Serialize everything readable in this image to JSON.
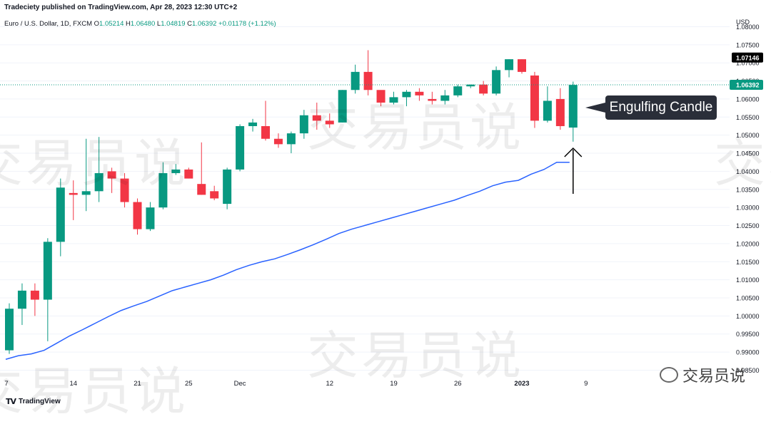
{
  "header": {
    "publisher": "Tradeciety published on TradingView.com, Apr 28, 2023 12:30 UTC+2"
  },
  "ohlc": {
    "symbol": "Euro / U.S. Dollar, 1D, FXCM",
    "o_label": "O",
    "o": "1.05214",
    "h_label": "H",
    "h": "1.06480",
    "l_label": "L",
    "l": "1.04819",
    "c_label": "C",
    "c": "1.06392",
    "change": "+0.01178 (+1.12%)"
  },
  "annotation": {
    "text": "Engulfing Candle"
  },
  "watermarks": {
    "text": "交易员说"
  },
  "branding": {
    "tradingview": "TradingView",
    "wechat": "交易员说"
  },
  "chart_data": {
    "type": "candlestick",
    "currency": "USD",
    "y_ticks": [
      "1.08000",
      "1.07500",
      "1.07000",
      "1.06500",
      "1.06000",
      "1.05500",
      "1.05000",
      "1.04500",
      "1.04000",
      "1.03500",
      "1.03000",
      "1.02500",
      "1.02000",
      "1.01500",
      "1.01000",
      "1.00500",
      "1.00000",
      "0.99500",
      "0.99000",
      "0.98500"
    ],
    "ylim": [
      0.9845,
      1.0795
    ],
    "last_price_label": "1.07146",
    "current_price_label": "1.06392",
    "current_price": 1.06392,
    "x_ticks": [
      {
        "label": "7",
        "index": 0
      },
      {
        "label": "14",
        "index": 5
      },
      {
        "label": "21",
        "index": 10
      },
      {
        "label": "25",
        "index": 14
      },
      {
        "label": "Dec",
        "index": 18
      },
      {
        "label": "12",
        "index": 25
      },
      {
        "label": "19",
        "index": 30
      },
      {
        "label": "26",
        "index": 35
      },
      {
        "label": "2023",
        "index": 40
      },
      {
        "label": "9",
        "index": 45
      }
    ],
    "candles": [
      {
        "o": 0.9905,
        "h": 1.0035,
        "l": 0.9895,
        "c": 1.002
      },
      {
        "o": 1.002,
        "h": 1.009,
        "l": 0.9975,
        "c": 1.007
      },
      {
        "o": 1.007,
        "h": 1.009,
        "l": 1.0,
        "c": 1.0045
      },
      {
        "o": 1.0045,
        "h": 1.0215,
        "l": 0.993,
        "c": 1.0205
      },
      {
        "o": 1.0205,
        "h": 1.038,
        "l": 1.0165,
        "c": 1.0355
      },
      {
        "o": 1.034,
        "h": 1.0375,
        "l": 1.0265,
        "c": 1.0335
      },
      {
        "o": 1.0335,
        "h": 1.049,
        "l": 1.029,
        "c": 1.0345
      },
      {
        "o": 1.0345,
        "h": 1.0495,
        "l": 1.0315,
        "c": 1.0395
      },
      {
        "o": 1.04,
        "h": 1.041,
        "l": 1.034,
        "c": 1.038
      },
      {
        "o": 1.038,
        "h": 1.0395,
        "l": 1.03,
        "c": 1.0315
      },
      {
        "o": 1.0315,
        "h": 1.0325,
        "l": 1.0225,
        "c": 1.024
      },
      {
        "o": 1.024,
        "h": 1.0315,
        "l": 1.0235,
        "c": 1.03
      },
      {
        "o": 1.03,
        "h": 1.0425,
        "l": 1.0295,
        "c": 1.0395
      },
      {
        "o": 1.0395,
        "h": 1.042,
        "l": 1.039,
        "c": 1.0405
      },
      {
        "o": 1.0405,
        "h": 1.041,
        "l": 1.038,
        "c": 1.038
      },
      {
        "o": 1.0365,
        "h": 1.048,
        "l": 1.0335,
        "c": 1.0335
      },
      {
        "o": 1.0345,
        "h": 1.036,
        "l": 1.032,
        "c": 1.0325
      },
      {
        "o": 1.031,
        "h": 1.041,
        "l": 1.0295,
        "c": 1.0405
      },
      {
        "o": 1.0405,
        "h": 1.053,
        "l": 1.04,
        "c": 1.0525
      },
      {
        "o": 1.0525,
        "h": 1.0545,
        "l": 1.051,
        "c": 1.0535
      },
      {
        "o": 1.0525,
        "h": 1.0595,
        "l": 1.0485,
        "c": 1.049
      },
      {
        "o": 1.049,
        "h": 1.0505,
        "l": 1.0465,
        "c": 1.0475
      },
      {
        "o": 1.0475,
        "h": 1.051,
        "l": 1.045,
        "c": 1.0505
      },
      {
        "o": 1.0505,
        "h": 1.057,
        "l": 1.049,
        "c": 1.0555
      },
      {
        "o": 1.0555,
        "h": 1.059,
        "l": 1.0515,
        "c": 1.054
      },
      {
        "o": 1.054,
        "h": 1.056,
        "l": 1.052,
        "c": 1.053
      },
      {
        "o": 1.0535,
        "h": 1.0625,
        "l": 1.0535,
        "c": 1.0625
      },
      {
        "o": 1.0625,
        "h": 1.0695,
        "l": 1.0615,
        "c": 1.0675
      },
      {
        "o": 1.0675,
        "h": 1.0735,
        "l": 1.061,
        "c": 1.0625
      },
      {
        "o": 1.0625,
        "h": 1.062,
        "l": 1.058,
        "c": 1.059
      },
      {
        "o": 1.059,
        "h": 1.062,
        "l": 1.0585,
        "c": 1.0605
      },
      {
        "o": 1.0605,
        "h": 1.0625,
        "l": 1.058,
        "c": 1.062
      },
      {
        "o": 1.062,
        "h": 1.063,
        "l": 1.0595,
        "c": 1.061
      },
      {
        "o": 1.06,
        "h": 1.062,
        "l": 1.0585,
        "c": 1.0595
      },
      {
        "o": 1.0595,
        "h": 1.0625,
        "l": 1.0585,
        "c": 1.061
      },
      {
        "o": 1.061,
        "h": 1.064,
        "l": 1.0605,
        "c": 1.0635
      },
      {
        "o": 1.0635,
        "h": 1.064,
        "l": 1.063,
        "c": 1.064
      },
      {
        "o": 1.064,
        "h": 1.065,
        "l": 1.061,
        "c": 1.0615
      },
      {
        "o": 1.0615,
        "h": 1.069,
        "l": 1.061,
        "c": 1.068
      },
      {
        "o": 1.068,
        "h": 1.071,
        "l": 1.066,
        "c": 1.071
      },
      {
        "o": 1.071,
        "h": 1.071,
        "l": 1.067,
        "c": 1.0675
      },
      {
        "o": 1.0665,
        "h": 1.0675,
        "l": 1.052,
        "c": 1.054
      },
      {
        "o": 1.054,
        "h": 1.0635,
        "l": 1.0535,
        "c": 1.0595
      },
      {
        "o": 1.06,
        "h": 1.063,
        "l": 1.0515,
        "c": 1.0525
      },
      {
        "o": 1.0521,
        "h": 1.0648,
        "l": 1.0482,
        "c": 1.0639
      }
    ],
    "ma_line": [
      0.988,
      0.989,
      0.9895,
      0.9905,
      0.9925,
      0.9945,
      0.9962,
      0.998,
      0.9998,
      1.0015,
      1.0028,
      1.004,
      1.0055,
      1.007,
      1.008,
      1.009,
      1.01,
      1.0113,
      1.0128,
      1.014,
      1.015,
      1.0158,
      1.017,
      1.0183,
      1.0197,
      1.0212,
      1.0228,
      1.024,
      1.025,
      1.026,
      1.027,
      1.028,
      1.029,
      1.03,
      1.031,
      1.032,
      1.0333,
      1.0345,
      1.036,
      1.037,
      1.0375,
      1.0392,
      1.0405,
      1.0425,
      1.0425
    ],
    "colors": {
      "up": "#089981",
      "down": "#f23645",
      "ma": "#2962ff",
      "grid": "#f0f3fa",
      "price_line": "#089981"
    }
  }
}
